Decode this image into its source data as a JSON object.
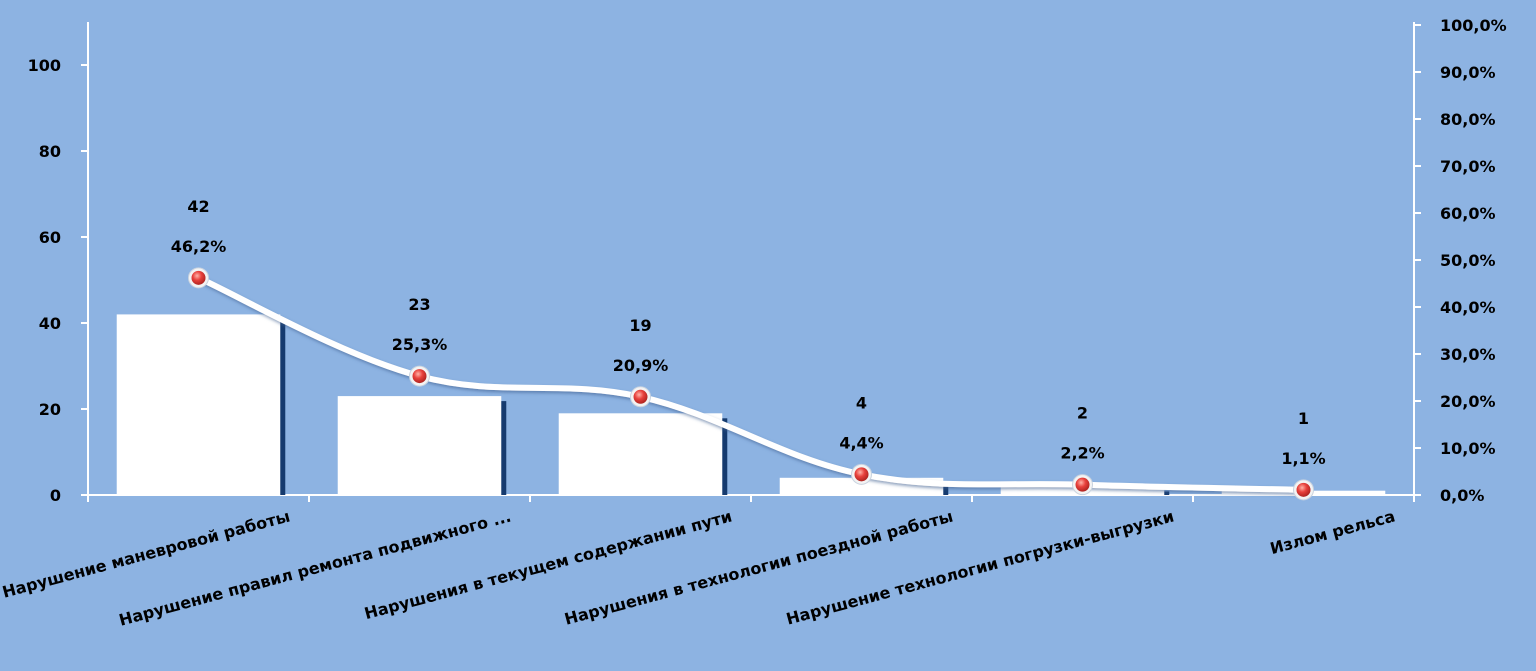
{
  "chart_data": {
    "type": "bar",
    "categories": [
      "Нарушение маневровой работы",
      "Нарушение правил  ремонта подвижного ...",
      "Нарушения в текущем содержании пути",
      "Нарушения в технологии поездной работы",
      "Нарушение технологии погрузки-выгрузки",
      "Излом рельса"
    ],
    "series": [
      {
        "kind": "bar",
        "values": [
          42,
          23,
          19,
          4,
          2,
          1
        ],
        "data_labels": [
          "42",
          "23",
          "19",
          "4",
          "2",
          "1"
        ]
      },
      {
        "kind": "line",
        "axis": "right",
        "values": [
          46.2,
          25.3,
          20.9,
          4.4,
          2.2,
          1.1
        ],
        "data_labels": [
          "46,2%",
          "25,3%",
          "20,9%",
          "4,4%",
          "2,2%",
          "1,1%"
        ]
      }
    ],
    "y_left": {
      "ylim": [
        0,
        110
      ],
      "ticks": [
        0,
        20,
        40,
        60,
        80,
        100
      ],
      "tick_labels": [
        "0",
        "20",
        "40",
        "60",
        "80",
        "100"
      ]
    },
    "y_right": {
      "ylim": [
        0,
        100
      ],
      "ticks": [
        0,
        10,
        20,
        30,
        40,
        50,
        60,
        70,
        80,
        90,
        100
      ],
      "tick_labels": [
        "0,0%",
        "10,0%",
        "20,0%",
        "30,0%",
        "40,0%",
        "50,0%",
        "60,0%",
        "70,0%",
        "80,0%",
        "90,0%",
        "100,0%"
      ]
    },
    "title": "",
    "xlabel": "",
    "ylabel": "",
    "grid": false,
    "legend": "none",
    "colors": {
      "background": "#8db3e2",
      "bar_fill": "#ffffff",
      "bar_shadow": "#1f4e8c",
      "line": "#ffffff",
      "marker": "#e8413c",
      "axis": "#ffffff",
      "text": "#000000"
    }
  }
}
